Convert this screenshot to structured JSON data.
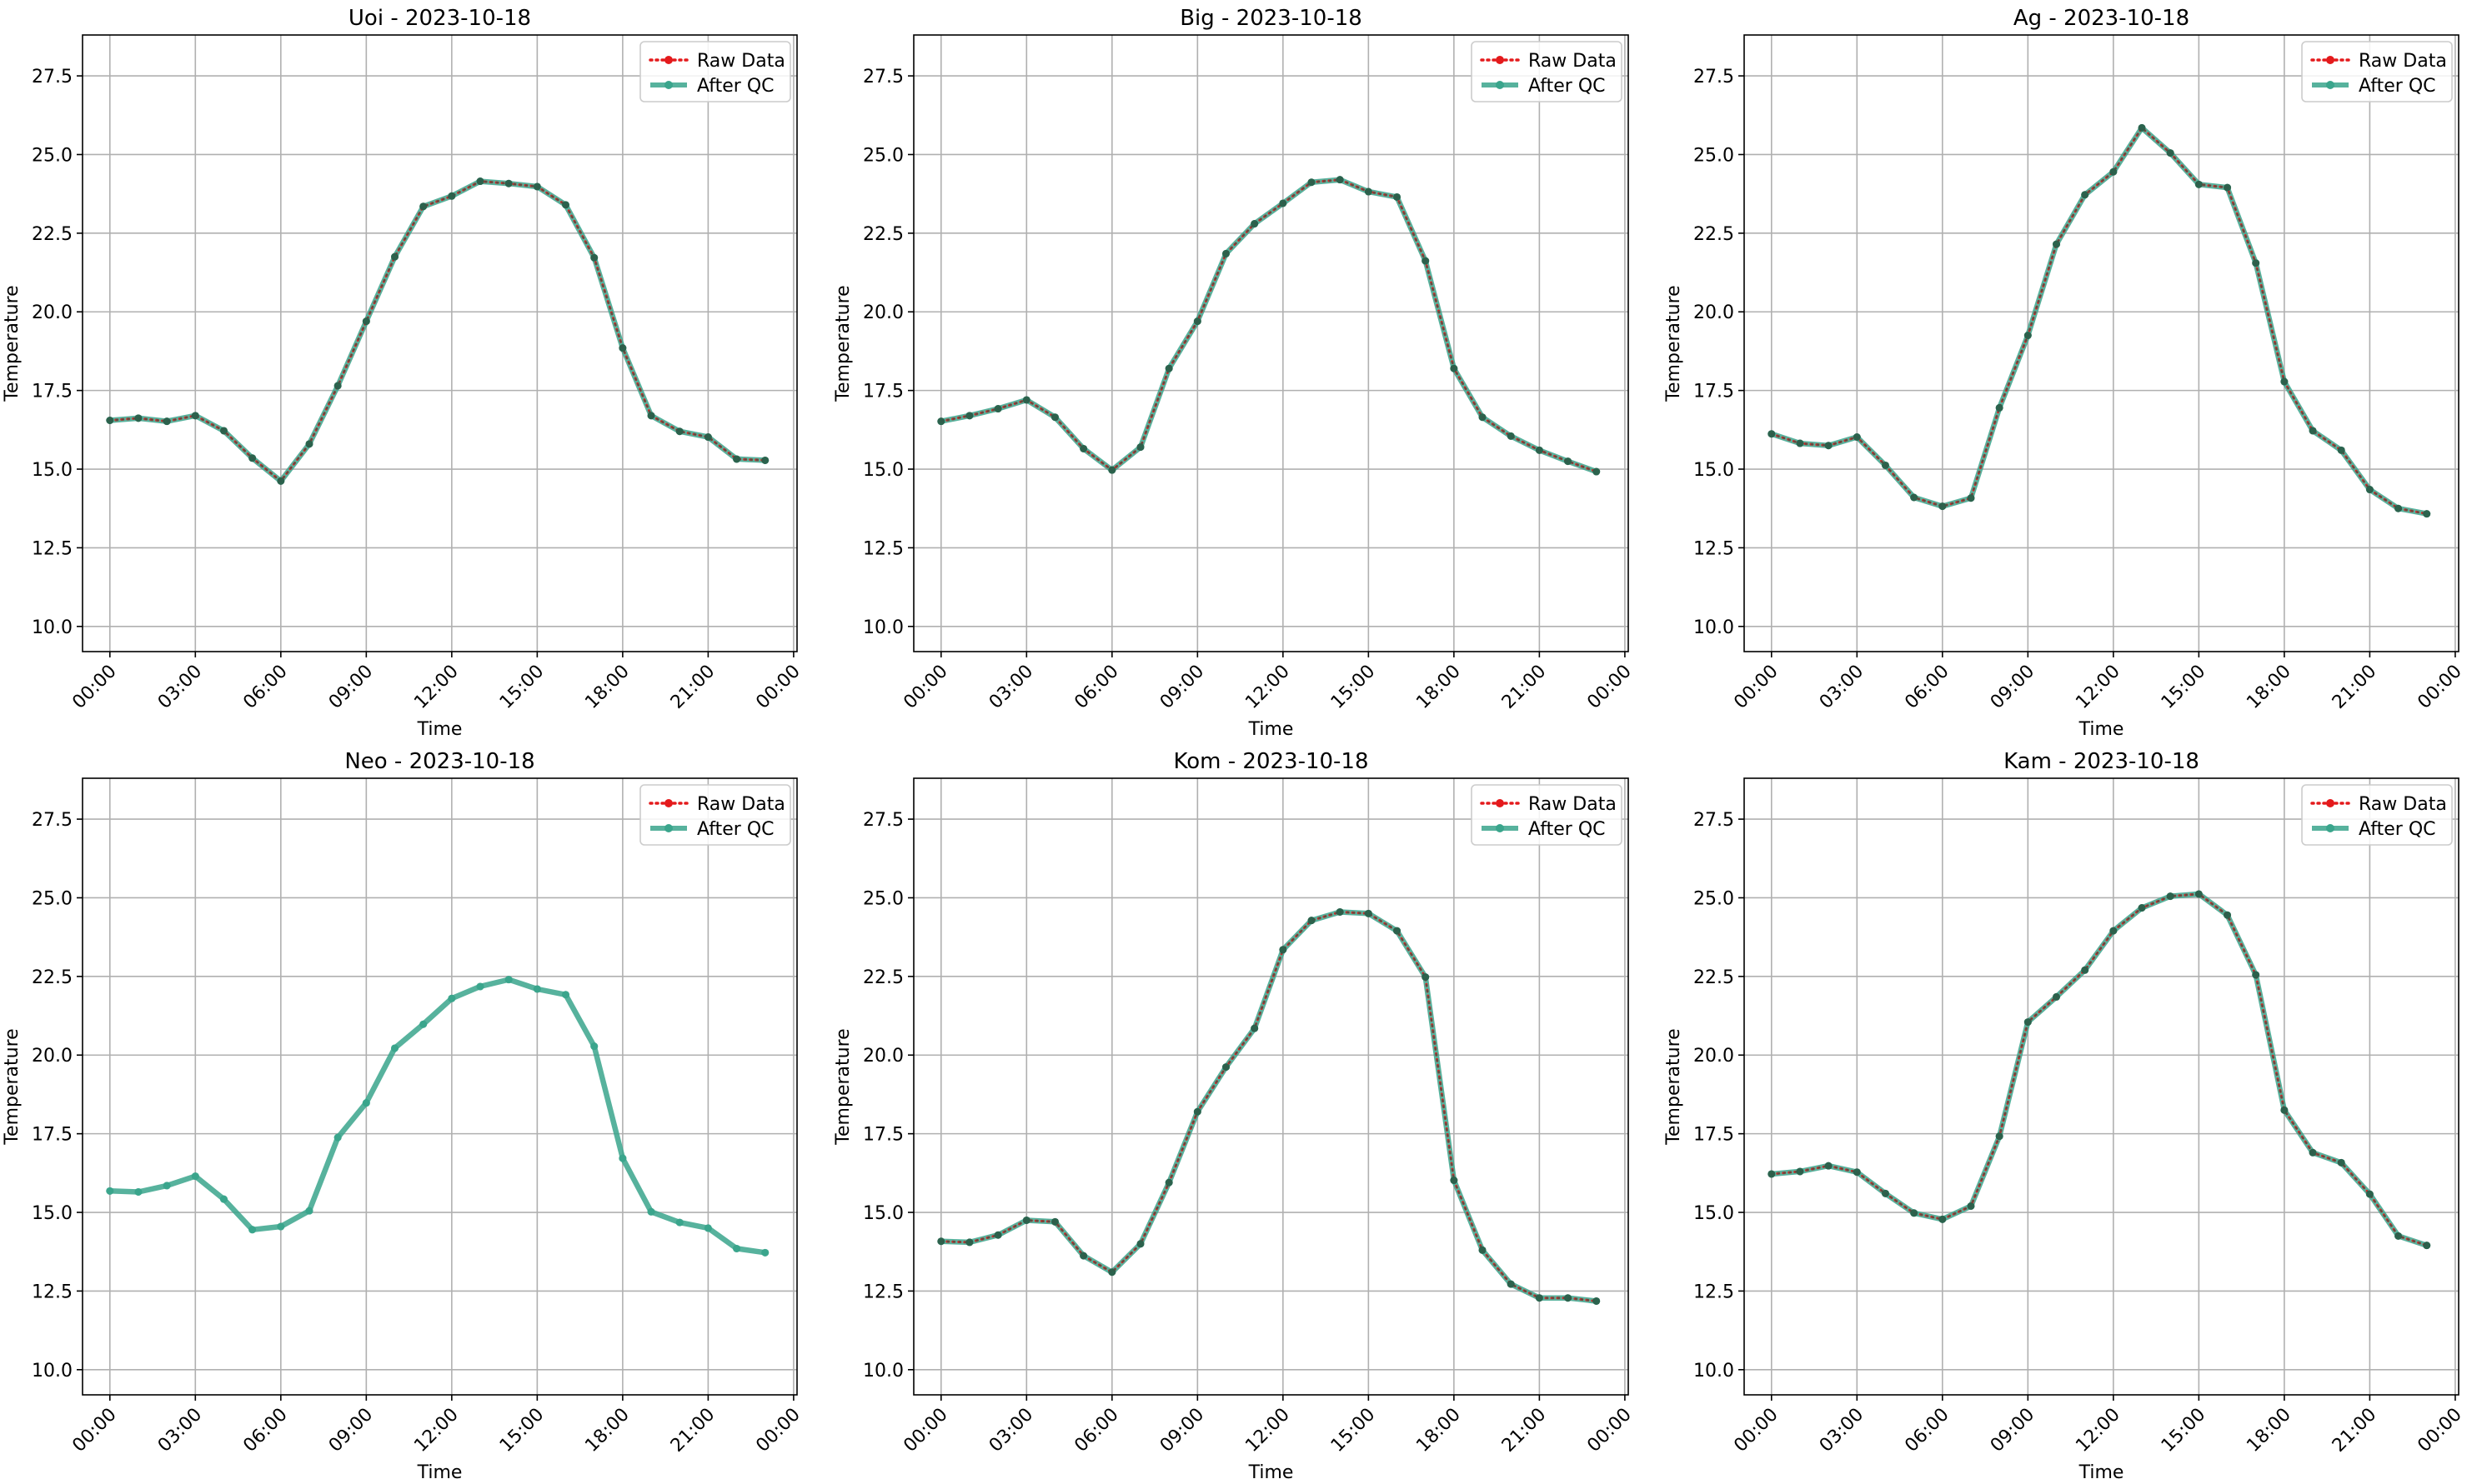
{
  "chart_data": [
    {
      "type": "line",
      "title": "Uoi - 2023-10-18",
      "xlabel": "Time",
      "ylabel": "Temperature",
      "x": [
        "00:00",
        "01:00",
        "02:00",
        "03:00",
        "04:00",
        "05:00",
        "06:00",
        "07:00",
        "08:00",
        "09:00",
        "10:00",
        "11:00",
        "12:00",
        "13:00",
        "14:00",
        "15:00",
        "16:00",
        "17:00",
        "18:00",
        "19:00",
        "20:00",
        "21:00",
        "22:00",
        "23:00"
      ],
      "xticks": [
        "00:00",
        "03:00",
        "06:00",
        "09:00",
        "12:00",
        "15:00",
        "18:00",
        "21:00",
        "00:00"
      ],
      "yticks": [
        "10.0",
        "12.5",
        "15.0",
        "17.5",
        "20.0",
        "22.5",
        "25.0",
        "27.5"
      ],
      "ylim": [
        9.2,
        28.8
      ],
      "grid": true,
      "legend_position": "top-right",
      "series": [
        {
          "name": "Raw Data",
          "color": "#e41a1c",
          "style": "dotted-markers",
          "values": [
            16.55,
            16.62,
            16.52,
            16.7,
            16.22,
            15.35,
            14.62,
            15.8,
            17.65,
            19.7,
            21.75,
            23.35,
            23.68,
            24.15,
            24.08,
            23.98,
            23.4,
            21.72,
            18.85,
            16.7,
            16.2,
            16.02,
            15.32,
            15.28
          ]
        },
        {
          "name": "After QC",
          "color": "#3aa58c",
          "style": "solid-markers",
          "values": [
            16.55,
            16.62,
            16.52,
            16.7,
            16.22,
            15.35,
            14.62,
            15.8,
            17.65,
            19.7,
            21.75,
            23.35,
            23.68,
            24.15,
            24.08,
            23.98,
            23.4,
            21.72,
            18.85,
            16.7,
            16.2,
            16.02,
            15.32,
            15.28
          ]
        }
      ]
    },
    {
      "type": "line",
      "title": "Big - 2023-10-18",
      "xlabel": "Time",
      "ylabel": "Temperature",
      "x": [
        "00:00",
        "01:00",
        "02:00",
        "03:00",
        "04:00",
        "05:00",
        "06:00",
        "07:00",
        "08:00",
        "09:00",
        "10:00",
        "11:00",
        "12:00",
        "13:00",
        "14:00",
        "15:00",
        "16:00",
        "17:00",
        "18:00",
        "19:00",
        "20:00",
        "21:00",
        "22:00",
        "23:00"
      ],
      "xticks": [
        "00:00",
        "03:00",
        "06:00",
        "09:00",
        "12:00",
        "15:00",
        "18:00",
        "21:00",
        "00:00"
      ],
      "yticks": [
        "10.0",
        "12.5",
        "15.0",
        "17.5",
        "20.0",
        "22.5",
        "25.0",
        "27.5"
      ],
      "ylim": [
        9.2,
        28.8
      ],
      "grid": true,
      "legend_position": "top-right",
      "series": [
        {
          "name": "Raw Data",
          "color": "#e41a1c",
          "style": "dotted-markers",
          "values": [
            16.52,
            16.7,
            16.92,
            17.2,
            16.65,
            15.65,
            14.97,
            15.7,
            18.2,
            19.7,
            21.85,
            22.8,
            23.45,
            24.12,
            24.2,
            23.82,
            23.65,
            21.62,
            18.2,
            16.65,
            16.05,
            15.6,
            15.25,
            14.92
          ]
        },
        {
          "name": "After QC",
          "color": "#3aa58c",
          "style": "solid-markers",
          "values": [
            16.52,
            16.7,
            16.92,
            17.2,
            16.65,
            15.65,
            14.97,
            15.7,
            18.2,
            19.7,
            21.85,
            22.8,
            23.45,
            24.12,
            24.2,
            23.82,
            23.65,
            21.62,
            18.2,
            16.65,
            16.05,
            15.6,
            15.25,
            14.92
          ]
        }
      ]
    },
    {
      "type": "line",
      "title": "Ag - 2023-10-18",
      "xlabel": "Time",
      "ylabel": "Temperature",
      "x": [
        "00:00",
        "01:00",
        "02:00",
        "03:00",
        "04:00",
        "05:00",
        "06:00",
        "07:00",
        "08:00",
        "09:00",
        "10:00",
        "11:00",
        "12:00",
        "13:00",
        "14:00",
        "15:00",
        "16:00",
        "17:00",
        "18:00",
        "19:00",
        "20:00",
        "21:00",
        "22:00",
        "23:00"
      ],
      "xticks": [
        "00:00",
        "03:00",
        "06:00",
        "09:00",
        "12:00",
        "15:00",
        "18:00",
        "21:00",
        "00:00"
      ],
      "yticks": [
        "10.0",
        "12.5",
        "15.0",
        "17.5",
        "20.0",
        "22.5",
        "25.0",
        "27.5"
      ],
      "ylim": [
        9.2,
        28.8
      ],
      "grid": true,
      "legend_position": "top-right",
      "series": [
        {
          "name": "Raw Data",
          "color": "#e41a1c",
          "style": "dotted-markers",
          "values": [
            16.12,
            15.82,
            15.75,
            16.02,
            15.12,
            14.1,
            13.82,
            14.08,
            16.95,
            19.25,
            22.15,
            23.72,
            24.45,
            25.85,
            25.05,
            24.05,
            23.95,
            21.55,
            17.78,
            16.22,
            15.6,
            14.35,
            13.75,
            13.58
          ]
        },
        {
          "name": "After QC",
          "color": "#3aa58c",
          "style": "solid-markers",
          "values": [
            16.12,
            15.82,
            15.75,
            16.02,
            15.12,
            14.1,
            13.82,
            14.08,
            16.95,
            19.25,
            22.15,
            23.72,
            24.45,
            25.85,
            25.05,
            24.05,
            23.95,
            21.55,
            17.78,
            16.22,
            15.6,
            14.35,
            13.75,
            13.58
          ]
        }
      ]
    },
    {
      "type": "line",
      "title": "Neo - 2023-10-18",
      "xlabel": "Time",
      "ylabel": "Temperature",
      "x": [
        "00:00",
        "01:00",
        "02:00",
        "03:00",
        "04:00",
        "05:00",
        "06:00",
        "07:00",
        "08:00",
        "09:00",
        "10:00",
        "11:00",
        "12:00",
        "13:00",
        "14:00",
        "15:00",
        "16:00",
        "17:00",
        "18:00",
        "19:00",
        "20:00",
        "21:00",
        "22:00",
        "23:00"
      ],
      "xticks": [
        "00:00",
        "03:00",
        "06:00",
        "09:00",
        "12:00",
        "15:00",
        "18:00",
        "21:00",
        "00:00"
      ],
      "yticks": [
        "10.0",
        "12.5",
        "15.0",
        "17.5",
        "20.0",
        "22.5",
        "25.0",
        "27.5"
      ],
      "ylim": [
        9.2,
        28.8
      ],
      "grid": true,
      "legend_position": "top-right",
      "series": [
        {
          "name": "Raw Data",
          "color": "#e41a1c",
          "style": "dotted-markers",
          "values": [
            15.68,
            15.65,
            15.85,
            16.15,
            15.42,
            14.45,
            14.55,
            15.05,
            17.38,
            18.48,
            20.22,
            20.98,
            21.8,
            22.18,
            22.4,
            22.1,
            21.92,
            20.28,
            16.72,
            15.02,
            14.68,
            14.5,
            13.85,
            13.72
          ]
        },
        {
          "name": "After QC",
          "color": "#3aa58c",
          "style": "solid-markers",
          "values": [
            15.68,
            15.65,
            15.85,
            16.15,
            15.42,
            14.45,
            14.55,
            15.05,
            17.38,
            18.48,
            20.22,
            20.98,
            21.8,
            22.18,
            22.4,
            22.1,
            21.92,
            20.28,
            16.72,
            15.02,
            14.68,
            14.5,
            13.85,
            13.72
          ]
        }
      ]
    },
    {
      "type": "line",
      "title": "Kom - 2023-10-18",
      "xlabel": "Time",
      "ylabel": "Temperature",
      "x": [
        "00:00",
        "01:00",
        "02:00",
        "03:00",
        "04:00",
        "05:00",
        "06:00",
        "07:00",
        "08:00",
        "09:00",
        "10:00",
        "11:00",
        "12:00",
        "13:00",
        "14:00",
        "15:00",
        "16:00",
        "17:00",
        "18:00",
        "19:00",
        "20:00",
        "21:00",
        "22:00",
        "23:00"
      ],
      "xticks": [
        "00:00",
        "03:00",
        "06:00",
        "09:00",
        "12:00",
        "15:00",
        "18:00",
        "21:00",
        "00:00"
      ],
      "yticks": [
        "10.0",
        "12.5",
        "15.0",
        "17.5",
        "20.0",
        "22.5",
        "25.0",
        "27.5"
      ],
      "ylim": [
        9.2,
        28.8
      ],
      "grid": true,
      "legend_position": "top-right",
      "series": [
        {
          "name": "Raw Data",
          "color": "#e41a1c",
          "style": "dotted-markers",
          "values": [
            14.08,
            14.05,
            14.28,
            14.75,
            14.7,
            13.62,
            13.1,
            14.0,
            15.95,
            18.2,
            19.62,
            20.85,
            23.35,
            24.28,
            24.55,
            24.5,
            23.95,
            22.48,
            16.02,
            13.8,
            12.72,
            12.28,
            12.28,
            12.18
          ]
        },
        {
          "name": "After QC",
          "color": "#3aa58c",
          "style": "solid-markers",
          "values": [
            14.08,
            14.05,
            14.28,
            14.75,
            14.7,
            13.62,
            13.1,
            14.0,
            15.95,
            18.2,
            19.62,
            20.85,
            23.35,
            24.28,
            24.55,
            24.5,
            23.95,
            22.48,
            16.02,
            13.8,
            12.72,
            12.28,
            12.28,
            12.18
          ]
        }
      ]
    },
    {
      "type": "line",
      "title": "Kam - 2023-10-18",
      "xlabel": "Time",
      "ylabel": "Temperature",
      "x": [
        "00:00",
        "01:00",
        "02:00",
        "03:00",
        "04:00",
        "05:00",
        "06:00",
        "07:00",
        "08:00",
        "09:00",
        "10:00",
        "11:00",
        "12:00",
        "13:00",
        "14:00",
        "15:00",
        "16:00",
        "17:00",
        "18:00",
        "19:00",
        "20:00",
        "21:00",
        "22:00",
        "23:00"
      ],
      "xticks": [
        "00:00",
        "03:00",
        "06:00",
        "09:00",
        "12:00",
        "15:00",
        "18:00",
        "21:00",
        "00:00"
      ],
      "yticks": [
        "10.0",
        "12.5",
        "15.0",
        "17.5",
        "20.0",
        "22.5",
        "25.0",
        "27.5"
      ],
      "ylim": [
        9.2,
        28.8
      ],
      "grid": true,
      "legend_position": "top-right",
      "series": [
        {
          "name": "Raw Data",
          "color": "#e41a1c",
          "style": "dotted-markers",
          "values": [
            16.22,
            16.3,
            16.48,
            16.28,
            15.6,
            14.98,
            14.78,
            15.2,
            17.42,
            21.05,
            21.85,
            22.7,
            23.95,
            24.68,
            25.05,
            25.12,
            24.45,
            22.55,
            18.25,
            16.9,
            16.58,
            15.58,
            14.25,
            13.95
          ]
        },
        {
          "name": "After QC",
          "color": "#3aa58c",
          "style": "solid-markers",
          "values": [
            16.22,
            16.3,
            16.48,
            16.28,
            15.6,
            14.98,
            14.78,
            15.2,
            17.42,
            21.05,
            21.85,
            22.7,
            23.95,
            24.68,
            25.05,
            25.12,
            24.45,
            22.55,
            18.25,
            16.9,
            16.58,
            15.58,
            14.25,
            13.95
          ]
        }
      ]
    }
  ]
}
